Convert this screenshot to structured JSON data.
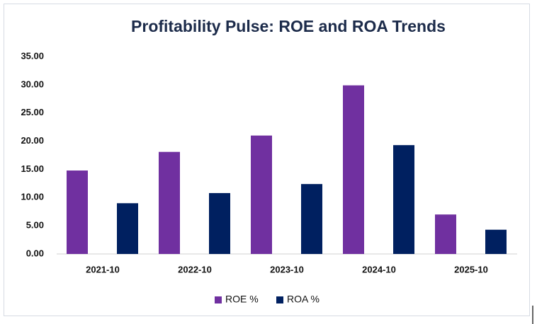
{
  "chart_data": {
    "type": "bar",
    "title": "Profitability Pulse: ROE and ROA Trends",
    "categories": [
      "2021-10",
      "2022-10",
      "2023-10",
      "2024-10",
      "2025-10"
    ],
    "series": [
      {
        "name": "ROE %",
        "color": "#7030a0",
        "values": [
          14.8,
          18.1,
          21.0,
          29.9,
          7.0
        ]
      },
      {
        "name": "ROA %",
        "color": "#002060",
        "values": [
          9.0,
          10.8,
          12.4,
          19.3,
          4.3
        ]
      }
    ],
    "ylim": [
      0,
      35
    ],
    "yticks": [
      {
        "value": 0,
        "label": "0.00"
      },
      {
        "value": 5,
        "label": "5.00"
      },
      {
        "value": 10,
        "label": "10.00"
      },
      {
        "value": 15,
        "label": "15.00"
      },
      {
        "value": 20,
        "label": "20.00"
      },
      {
        "value": 25,
        "label": "25.00"
      },
      {
        "value": 30,
        "label": "30.00"
      },
      {
        "value": 35,
        "label": "35.00"
      }
    ],
    "grid": false,
    "legend": "bottom"
  }
}
